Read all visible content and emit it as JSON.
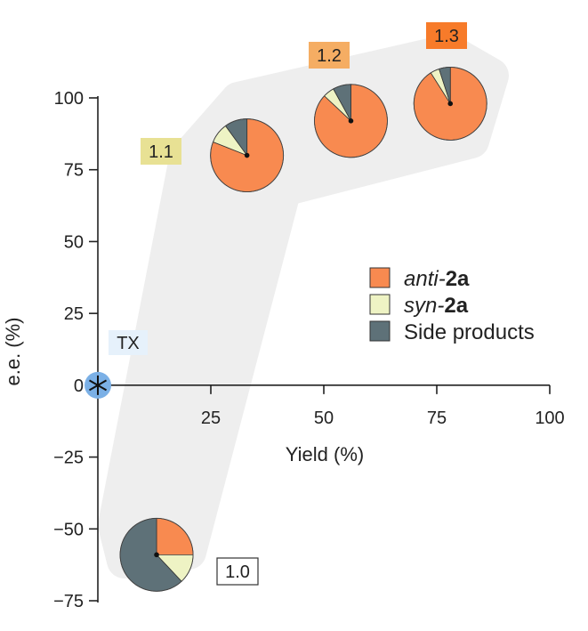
{
  "chart_data": {
    "type": "scatter",
    "xlabel": "Yield (%)",
    "ylabel": "e.e. (%)",
    "xlim": [
      0,
      100
    ],
    "ylim": [
      -75,
      100
    ],
    "x_ticks": [
      25,
      50,
      75,
      100
    ],
    "y_ticks": [
      100,
      75,
      50,
      25,
      0,
      -25,
      -50,
      -75
    ],
    "colors": {
      "anti": "#f88a50",
      "syn": "#eef3c4",
      "side": "#5e7178",
      "band": "#eeeeee",
      "tx_marker": "#7bb0e6"
    },
    "legend": {
      "position": "right",
      "items": [
        {
          "key": "anti",
          "prefix": "anti-",
          "bold": "2a",
          "italic_prefix": true
        },
        {
          "key": "syn",
          "prefix": "syn-",
          "bold": "2a",
          "italic_prefix": true
        },
        {
          "key": "side",
          "prefix": "Side products",
          "bold": "",
          "italic_prefix": false
        }
      ]
    },
    "points": [
      {
        "label": "TX",
        "x": 0,
        "y": 0,
        "marker": "star",
        "label_fill": "#e6f1fb"
      },
      {
        "label": "1.0",
        "x": 13,
        "y": -59,
        "fractions": {
          "anti": 0.25,
          "syn": 0.13,
          "side": 0.62
        },
        "label_fill": "#ffffff"
      },
      {
        "label": "1.1",
        "x": 33,
        "y": 80,
        "fractions": {
          "anti": 0.81,
          "syn": 0.09,
          "side": 0.1
        },
        "label_fill": "#e8e194"
      },
      {
        "label": "1.2",
        "x": 56,
        "y": 92,
        "fractions": {
          "anti": 0.87,
          "syn": 0.05,
          "side": 0.08
        },
        "label_fill": "#f5ad63"
      },
      {
        "label": "1.3",
        "x": 78,
        "y": 98,
        "fractions": {
          "anti": 0.91,
          "syn": 0.04,
          "side": 0.05
        },
        "label_fill": "#f77b2a"
      }
    ]
  }
}
